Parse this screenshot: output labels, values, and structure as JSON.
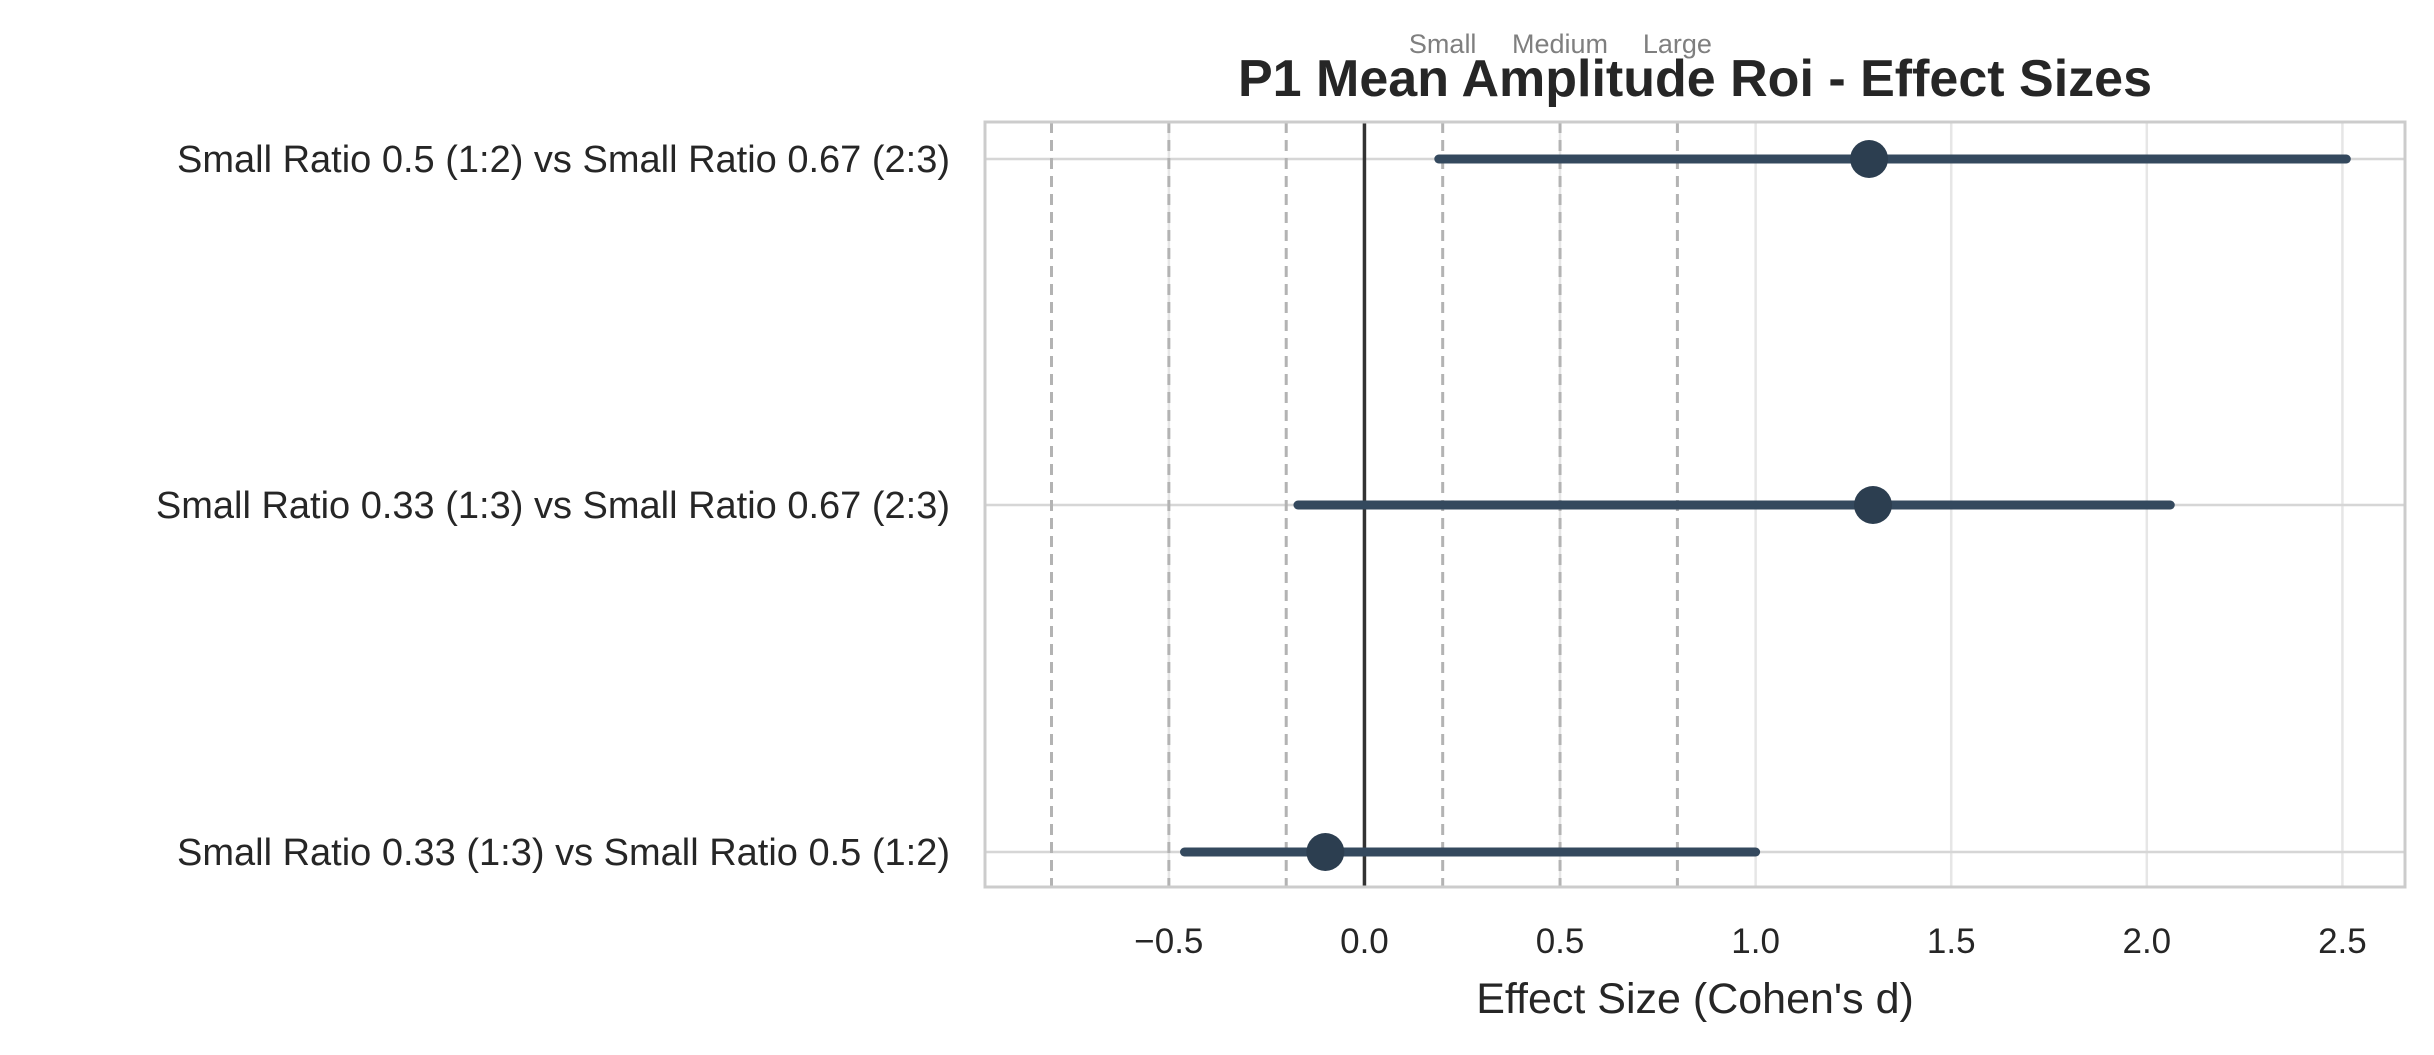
{
  "chart_data": {
    "type": "forest",
    "title": "P1 Mean Amplitude Roi - Effect Sizes",
    "xlabel": "Effect Size (Cohen's d)",
    "ylabel": "",
    "xlim": [
      -0.97,
      2.66
    ],
    "x_ticks": [
      -0.5,
      0.0,
      0.5,
      1.0,
      1.5,
      2.0,
      2.5
    ],
    "x_tick_labels": [
      "−0.5",
      "0.0",
      "0.5",
      "1.0",
      "1.5",
      "2.0",
      "2.5"
    ],
    "grid": true,
    "reference_line": 0.0,
    "threshold_lines": [
      -0.8,
      -0.5,
      -0.2,
      0.2,
      0.5,
      0.8
    ],
    "threshold_labels": [
      {
        "x": 0.2,
        "label": "Small"
      },
      {
        "x": 0.5,
        "label": "Medium"
      },
      {
        "x": 0.8,
        "label": "Large"
      }
    ],
    "comparisons": [
      {
        "label": "Small Ratio 0.5 (1:2) vs Small Ratio 0.67 (2:3)",
        "d": 1.29,
        "ci_low": 0.19,
        "ci_high": 2.51
      },
      {
        "label": "Small Ratio 0.33 (1:3) vs Small Ratio 0.67 (2:3)",
        "d": 1.3,
        "ci_low": -0.17,
        "ci_high": 2.06
      },
      {
        "label": "Small Ratio 0.33 (1:3) vs Small Ratio 0.5 (1:2)",
        "d": -0.1,
        "ci_low": -0.46,
        "ci_high": 1.0
      }
    ],
    "colors": {
      "marker": "#2c3e50",
      "errorbar": "#34495e",
      "reference": "#333333",
      "threshold": "#b3b3b3",
      "grid": "#e6e6e6",
      "frame": "#cccccc"
    }
  }
}
